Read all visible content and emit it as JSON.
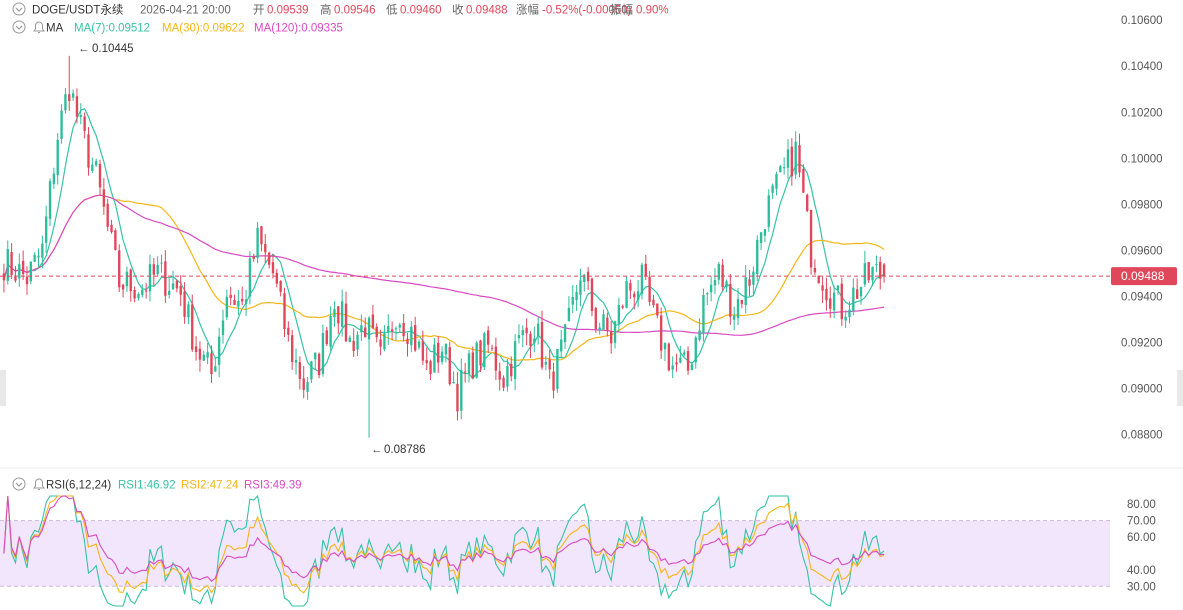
{
  "header": {
    "symbol": "DOGE/USDT永续",
    "datetime": "2026-04-21 20:00",
    "open_label": "开",
    "open": "0.09539",
    "high_label": "高",
    "high": "0.09546",
    "low_label": "低",
    "low": "0.09460",
    "close_label": "收",
    "close": "0.09488",
    "change_label": "涨幅",
    "change": "-0.52%(-0.00050)",
    "amplitude_label": "振幅",
    "amplitude": "0.90%"
  },
  "ma_indicator": {
    "name": "MA",
    "ma7_label": "MA(7):0.09512",
    "ma30_label": "MA(30):0.09622",
    "ma120_label": "MA(120):0.09335"
  },
  "rsi_indicator": {
    "name": "RSI(6,12,24)",
    "rsi1_label": "RSI1:46.92",
    "rsi2_label": "RSI2:47.24",
    "rsi3_label": "RSI3:49.39"
  },
  "colors": {
    "up": "#2ebd9b",
    "down": "#e0475b",
    "ma7": "#36c3a6",
    "ma30": "#f4b61a",
    "ma120": "#d94bc4",
    "rsi1": "#36c3a6",
    "rsi2": "#f4b61a",
    "rsi3": "#d94bc4",
    "last_price_bg": "#e0475b",
    "rsi_band": "#f1e6fb"
  },
  "icons": {
    "collapse": "chevron-down-icon",
    "alert": "bell-icon"
  },
  "chart_data": [
    {
      "type": "candlestick",
      "price_axis_ticks": [
        "0.10600",
        "0.10400",
        "0.10200",
        "0.10000",
        "0.09800",
        "0.09600",
        "0.09400",
        "0.09200",
        "0.09000",
        "0.08800"
      ],
      "ylim": [
        0.0875,
        0.1064
      ],
      "last_price": "0.09488",
      "high_annotation": "0.10445",
      "low_annotation": "0.08786",
      "anchors": [
        {
          "i": 0,
          "p": 0.0955
        },
        {
          "i": 6,
          "p": 0.0948
        },
        {
          "i": 10,
          "p": 0.096
        },
        {
          "i": 14,
          "p": 0.101
        },
        {
          "i": 17,
          "p": 0.1032
        },
        {
          "i": 20,
          "p": 0.1012
        },
        {
          "i": 24,
          "p": 0.0992
        },
        {
          "i": 30,
          "p": 0.0946
        },
        {
          "i": 36,
          "p": 0.0944
        },
        {
          "i": 40,
          "p": 0.095
        },
        {
          "i": 46,
          "p": 0.0942
        },
        {
          "i": 50,
          "p": 0.0918
        },
        {
          "i": 54,
          "p": 0.0906
        },
        {
          "i": 58,
          "p": 0.0942
        },
        {
          "i": 62,
          "p": 0.0936
        },
        {
          "i": 66,
          "p": 0.0964
        },
        {
          "i": 70,
          "p": 0.095
        },
        {
          "i": 74,
          "p": 0.092
        },
        {
          "i": 78,
          "p": 0.0902
        },
        {
          "i": 82,
          "p": 0.0912
        },
        {
          "i": 86,
          "p": 0.094
        },
        {
          "i": 90,
          "p": 0.092
        },
        {
          "i": 94,
          "p": 0.0928
        },
        {
          "i": 98,
          "p": 0.0912
        },
        {
          "i": 102,
          "p": 0.0934
        },
        {
          "i": 106,
          "p": 0.0925
        },
        {
          "i": 110,
          "p": 0.0908
        },
        {
          "i": 114,
          "p": 0.0918
        },
        {
          "i": 118,
          "p": 0.0898
        },
        {
          "i": 122,
          "p": 0.0912
        },
        {
          "i": 126,
          "p": 0.0918
        },
        {
          "i": 130,
          "p": 0.0905
        },
        {
          "i": 134,
          "p": 0.092
        },
        {
          "i": 138,
          "p": 0.0928
        },
        {
          "i": 142,
          "p": 0.0902
        },
        {
          "i": 146,
          "p": 0.092
        },
        {
          "i": 150,
          "p": 0.0951
        },
        {
          "i": 154,
          "p": 0.093
        },
        {
          "i": 158,
          "p": 0.0922
        },
        {
          "i": 162,
          "p": 0.0943
        },
        {
          "i": 166,
          "p": 0.0946
        },
        {
          "i": 170,
          "p": 0.0925
        },
        {
          "i": 174,
          "p": 0.091
        },
        {
          "i": 178,
          "p": 0.0908
        },
        {
          "i": 182,
          "p": 0.0938
        },
        {
          "i": 186,
          "p": 0.095
        },
        {
          "i": 190,
          "p": 0.0935
        },
        {
          "i": 194,
          "p": 0.0948
        },
        {
          "i": 198,
          "p": 0.0976
        },
        {
          "i": 202,
          "p": 0.099
        },
        {
          "i": 206,
          "p": 0.1003
        },
        {
          "i": 210,
          "p": 0.096
        },
        {
          "i": 214,
          "p": 0.0945
        },
        {
          "i": 218,
          "p": 0.0935
        },
        {
          "i": 222,
          "p": 0.0943
        },
        {
          "i": 226,
          "p": 0.095
        },
        {
          "i": 229,
          "p": 0.0949
        }
      ],
      "count": 230,
      "ma_series": [
        {
          "label": "MA(7)",
          "period": 7
        },
        {
          "label": "MA(30)",
          "period": 30
        },
        {
          "label": "MA(120)",
          "period": 120
        }
      ]
    },
    {
      "type": "line",
      "indicator": "RSI",
      "axis_ticks": [
        "80.00",
        "70.00",
        "60.00",
        "40.00",
        "30.00"
      ],
      "ylim": [
        18,
        85
      ],
      "band": [
        30,
        70
      ],
      "series": [
        {
          "name": "RSI1",
          "period": 6
        },
        {
          "name": "RSI2",
          "period": 12
        },
        {
          "name": "RSI3",
          "period": 24
        }
      ]
    }
  ]
}
